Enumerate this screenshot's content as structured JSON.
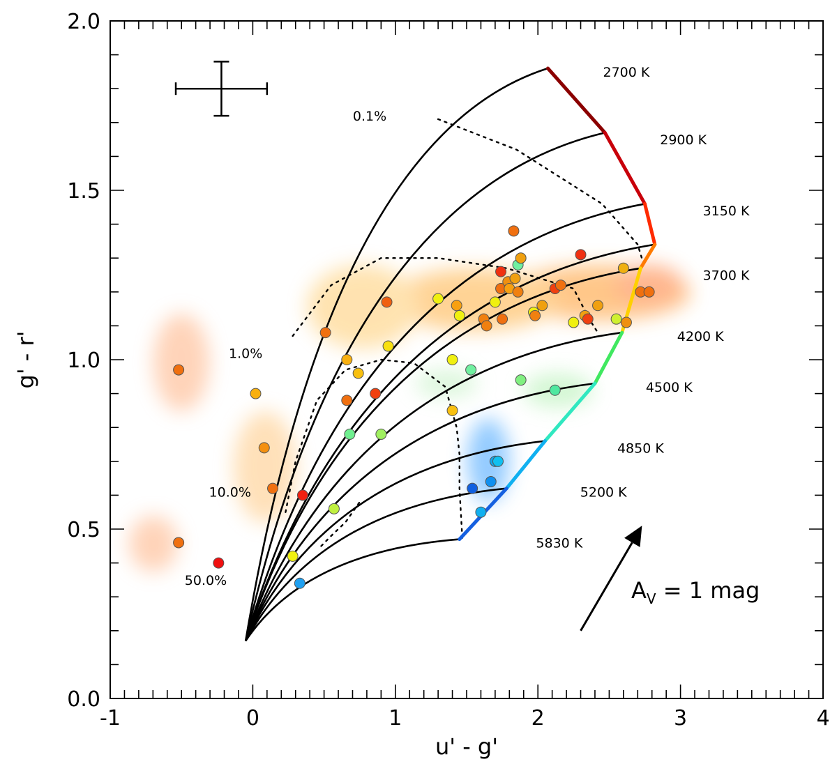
{
  "chart_data": {
    "type": "scatter",
    "xlabel": "u' - g'",
    "ylabel": "g' - r'",
    "xlim": [
      -1,
      4
    ],
    "ylim": [
      0,
      2
    ],
    "x_ticks": [
      "-1",
      "0",
      "1",
      "2",
      "3",
      "4"
    ],
    "y_ticks": [
      "0.0",
      "0.5",
      "1.0",
      "1.5",
      "2.0"
    ],
    "origin": [
      -0.05,
      0.17
    ],
    "temperature_curve": [
      {
        "label": "2700 K",
        "x": 2.07,
        "y": 1.86,
        "color": "#8b0000",
        "label_at": [
          2.62,
          1.85
        ]
      },
      {
        "label": "2900 K",
        "x": 2.47,
        "y": 1.67,
        "color": "#c8000a",
        "label_at": [
          3.02,
          1.65
        ]
      },
      {
        "label": "3150 K",
        "x": 2.75,
        "y": 1.46,
        "color": "#ff2a00",
        "label_at": [
          3.32,
          1.44
        ]
      },
      {
        "label": "",
        "x": 2.82,
        "y": 1.34,
        "color": "#ff7a00",
        "label_at": null
      },
      {
        "label": "3700 K",
        "x": 2.72,
        "y": 1.27,
        "color": "#ffd000",
        "label_at": [
          3.32,
          1.25
        ]
      },
      {
        "label": "4200 K",
        "x": 2.59,
        "y": 1.08,
        "color": "#40e860",
        "label_at": [
          3.14,
          1.07
        ]
      },
      {
        "label": "4500 K",
        "x": 2.4,
        "y": 0.93,
        "color": "#30e8c0",
        "label_at": [
          2.92,
          0.92
        ]
      },
      {
        "label": "4850 K",
        "x": 2.05,
        "y": 0.76,
        "color": "#10b0f0",
        "label_at": [
          2.72,
          0.74
        ]
      },
      {
        "label": "5200 K",
        "x": 1.78,
        "y": 0.62,
        "color": "#1560e0",
        "label_at": [
          2.46,
          0.61
        ]
      },
      {
        "label": "5830 K",
        "x": 1.45,
        "y": 0.47,
        "color": "#0000a0",
        "label_at": [
          2.15,
          0.46
        ]
      }
    ],
    "percent_contours": [
      {
        "label": "0.1%",
        "label_at": [
          0.82,
          1.72
        ],
        "points": [
          [
            1.3,
            1.71
          ],
          [
            1.85,
            1.62
          ],
          [
            2.45,
            1.46
          ],
          [
            2.7,
            1.34
          ],
          [
            2.75,
            1.27
          ]
        ]
      },
      {
        "label": "1.0%",
        "label_at": [
          -0.05,
          1.02
        ],
        "points": [
          [
            0.28,
            1.07
          ],
          [
            0.55,
            1.22
          ],
          [
            0.9,
            1.3
          ],
          [
            1.3,
            1.3
          ],
          [
            1.78,
            1.27
          ],
          [
            2.25,
            1.21
          ],
          [
            2.36,
            1.12
          ],
          [
            2.42,
            1.08
          ]
        ]
      },
      {
        "label": "10.0%",
        "label_at": [
          -0.16,
          0.61
        ],
        "points": [
          [
            0.23,
            0.55
          ],
          [
            0.3,
            0.7
          ],
          [
            0.45,
            0.88
          ],
          [
            0.65,
            0.97
          ],
          [
            0.9,
            1.0
          ],
          [
            1.13,
            0.99
          ],
          [
            1.35,
            0.92
          ],
          [
            1.43,
            0.8
          ],
          [
            1.45,
            0.72
          ],
          [
            1.45,
            0.62
          ],
          [
            1.47,
            0.47
          ]
        ]
      },
      {
        "label": "50.0%",
        "label_at": [
          -0.33,
          0.35
        ],
        "points": [
          [
            0.48,
            0.45
          ],
          [
            0.55,
            0.48
          ],
          [
            0.65,
            0.52
          ],
          [
            0.75,
            0.58
          ]
        ]
      }
    ],
    "points": [
      {
        "x": -0.52,
        "y": 0.97,
        "color": "#f07010"
      },
      {
        "x": 0.02,
        "y": 0.9,
        "color": "#f8b010"
      },
      {
        "x": 0.08,
        "y": 0.74,
        "color": "#f49010"
      },
      {
        "x": 0.14,
        "y": 0.62,
        "color": "#f07010"
      },
      {
        "x": -0.52,
        "y": 0.46,
        "color": "#f07010"
      },
      {
        "x": -0.24,
        "y": 0.4,
        "color": "#f01010"
      },
      {
        "x": 0.28,
        "y": 0.42,
        "color": "#f0f010"
      },
      {
        "x": 0.33,
        "y": 0.34,
        "color": "#20a0f0"
      },
      {
        "x": 0.35,
        "y": 0.6,
        "color": "#f02010"
      },
      {
        "x": 0.57,
        "y": 0.56,
        "color": "#c0f040"
      },
      {
        "x": 0.51,
        "y": 1.08,
        "color": "#f07010"
      },
      {
        "x": 0.66,
        "y": 1.0,
        "color": "#f8b010"
      },
      {
        "x": 0.66,
        "y": 0.88,
        "color": "#f07010"
      },
      {
        "x": 0.68,
        "y": 0.78,
        "color": "#70f090"
      },
      {
        "x": 0.74,
        "y": 0.96,
        "color": "#f8c010"
      },
      {
        "x": 0.86,
        "y": 0.9,
        "color": "#f04010"
      },
      {
        "x": 0.9,
        "y": 0.78,
        "color": "#a0f060"
      },
      {
        "x": 0.94,
        "y": 1.17,
        "color": "#f06010"
      },
      {
        "x": 0.95,
        "y": 1.04,
        "color": "#f8e010"
      },
      {
        "x": 1.3,
        "y": 1.18,
        "color": "#f0f010"
      },
      {
        "x": 1.4,
        "y": 1.0,
        "color": "#f0f010"
      },
      {
        "x": 1.4,
        "y": 0.85,
        "color": "#f8c010"
      },
      {
        "x": 1.43,
        "y": 1.16,
        "color": "#f8a010"
      },
      {
        "x": 1.45,
        "y": 1.13,
        "color": "#f0f010"
      },
      {
        "x": 1.53,
        "y": 0.97,
        "color": "#70f0a0"
      },
      {
        "x": 1.54,
        "y": 0.62,
        "color": "#1060e0"
      },
      {
        "x": 1.62,
        "y": 1.12,
        "color": "#f08010"
      },
      {
        "x": 1.64,
        "y": 1.1,
        "color": "#f08010"
      },
      {
        "x": 1.67,
        "y": 0.64,
        "color": "#1090f0"
      },
      {
        "x": 1.7,
        "y": 1.17,
        "color": "#f0f010"
      },
      {
        "x": 1.7,
        "y": 0.7,
        "color": "#10a8f0"
      },
      {
        "x": 1.72,
        "y": 0.7,
        "color": "#10c0f0"
      },
      {
        "x": 1.74,
        "y": 1.26,
        "color": "#f03010"
      },
      {
        "x": 1.74,
        "y": 1.21,
        "color": "#f07010"
      },
      {
        "x": 1.75,
        "y": 1.12,
        "color": "#f07010"
      },
      {
        "x": 1.79,
        "y": 1.23,
        "color": "#f09010"
      },
      {
        "x": 1.8,
        "y": 1.21,
        "color": "#f8a010"
      },
      {
        "x": 1.83,
        "y": 1.38,
        "color": "#f07010"
      },
      {
        "x": 1.84,
        "y": 1.24,
        "color": "#f0a010"
      },
      {
        "x": 1.86,
        "y": 1.28,
        "color": "#70f0a0"
      },
      {
        "x": 1.86,
        "y": 1.2,
        "color": "#f08010"
      },
      {
        "x": 1.88,
        "y": 1.3,
        "color": "#f0a010"
      },
      {
        "x": 1.88,
        "y": 0.94,
        "color": "#80f080"
      },
      {
        "x": 1.97,
        "y": 1.14,
        "color": "#f0f010"
      },
      {
        "x": 1.98,
        "y": 1.13,
        "color": "#f08010"
      },
      {
        "x": 2.03,
        "y": 1.16,
        "color": "#f0a010"
      },
      {
        "x": 2.12,
        "y": 1.21,
        "color": "#f04010"
      },
      {
        "x": 2.12,
        "y": 0.91,
        "color": "#50e8a0"
      },
      {
        "x": 2.16,
        "y": 1.22,
        "color": "#f07010"
      },
      {
        "x": 2.25,
        "y": 1.11,
        "color": "#f0f010"
      },
      {
        "x": 2.3,
        "y": 1.31,
        "color": "#f03010"
      },
      {
        "x": 2.33,
        "y": 1.13,
        "color": "#f0a010"
      },
      {
        "x": 2.35,
        "y": 1.12,
        "color": "#f04010"
      },
      {
        "x": 2.42,
        "y": 1.16,
        "color": "#f0a010"
      },
      {
        "x": 2.55,
        "y": 1.12,
        "color": "#d0f030"
      },
      {
        "x": 2.6,
        "y": 1.27,
        "color": "#f0b010"
      },
      {
        "x": 2.62,
        "y": 1.11,
        "color": "#f09010"
      },
      {
        "x": 2.72,
        "y": 1.2,
        "color": "#f07010"
      },
      {
        "x": 2.78,
        "y": 1.2,
        "color": "#f07010"
      },
      {
        "x": 1.6,
        "y": 0.55,
        "color": "#10b0f0"
      }
    ],
    "error_bar": {
      "x": -0.22,
      "y": 1.8,
      "dx": 0.32,
      "dy": 0.08
    },
    "extinction_vector": {
      "label": "A_V = 1 mag",
      "from": [
        2.3,
        0.2
      ],
      "to": [
        2.73,
        0.51
      ]
    }
  }
}
